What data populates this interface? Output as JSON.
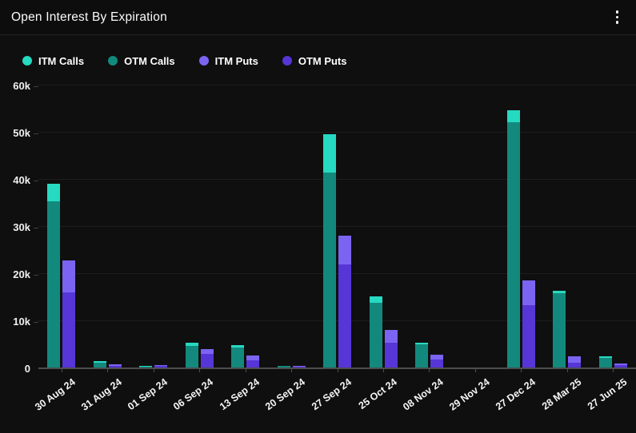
{
  "header": {
    "title": "Open Interest By Expiration",
    "menu_icon": "kebab-menu-icon"
  },
  "chart_data": {
    "type": "bar",
    "title": "Open Interest By Expiration",
    "stacked": true,
    "legend_position": "top",
    "grid": true,
    "xlabel": "",
    "ylabel": "",
    "ylim": [
      0,
      60000
    ],
    "y_ticks": [
      "0",
      "10k",
      "20k",
      "30k",
      "40k",
      "50k",
      "60k"
    ],
    "categories": [
      "30 Aug 24",
      "31 Aug 24",
      "01 Sep 24",
      "06 Sep 24",
      "13 Sep 24",
      "20 Sep 24",
      "27 Sep 24",
      "25 Oct 24",
      "08 Nov 24",
      "29 Nov 24",
      "27 Dec 24",
      "28 Mar 25",
      "27 Jun 25"
    ],
    "series": [
      {
        "name": "ITM Calls",
        "color": "#26d9c1",
        "stack": "calls",
        "values": [
          3700,
          300,
          100,
          800,
          500,
          100,
          8200,
          1300,
          300,
          0,
          2500,
          500,
          200
        ]
      },
      {
        "name": "OTM Calls",
        "color": "#13897d",
        "stack": "calls",
        "values": [
          35300,
          1000,
          200,
          4500,
          4200,
          300,
          41300,
          13800,
          5000,
          0,
          52100,
          15800,
          2100
        ]
      },
      {
        "name": "ITM Puts",
        "color": "#7c64f2",
        "stack": "puts",
        "values": [
          6800,
          200,
          200,
          1100,
          900,
          100,
          6000,
          2700,
          1000,
          0,
          5100,
          1200,
          300
        ]
      },
      {
        "name": "OTM Puts",
        "color": "#5636d6",
        "stack": "puts",
        "values": [
          16000,
          400,
          300,
          2800,
          1600,
          200,
          21900,
          5200,
          1700,
          0,
          13300,
          1100,
          500
        ]
      }
    ],
    "bar_segments_top_to_bottom": [
      [
        0,
        1
      ],
      [
        2,
        3
      ]
    ]
  },
  "colors": {
    "background": "#0f0f0f",
    "gridline": "#1d1d1d",
    "axis_line": "#4e4e4e",
    "text": "#ffffff"
  }
}
